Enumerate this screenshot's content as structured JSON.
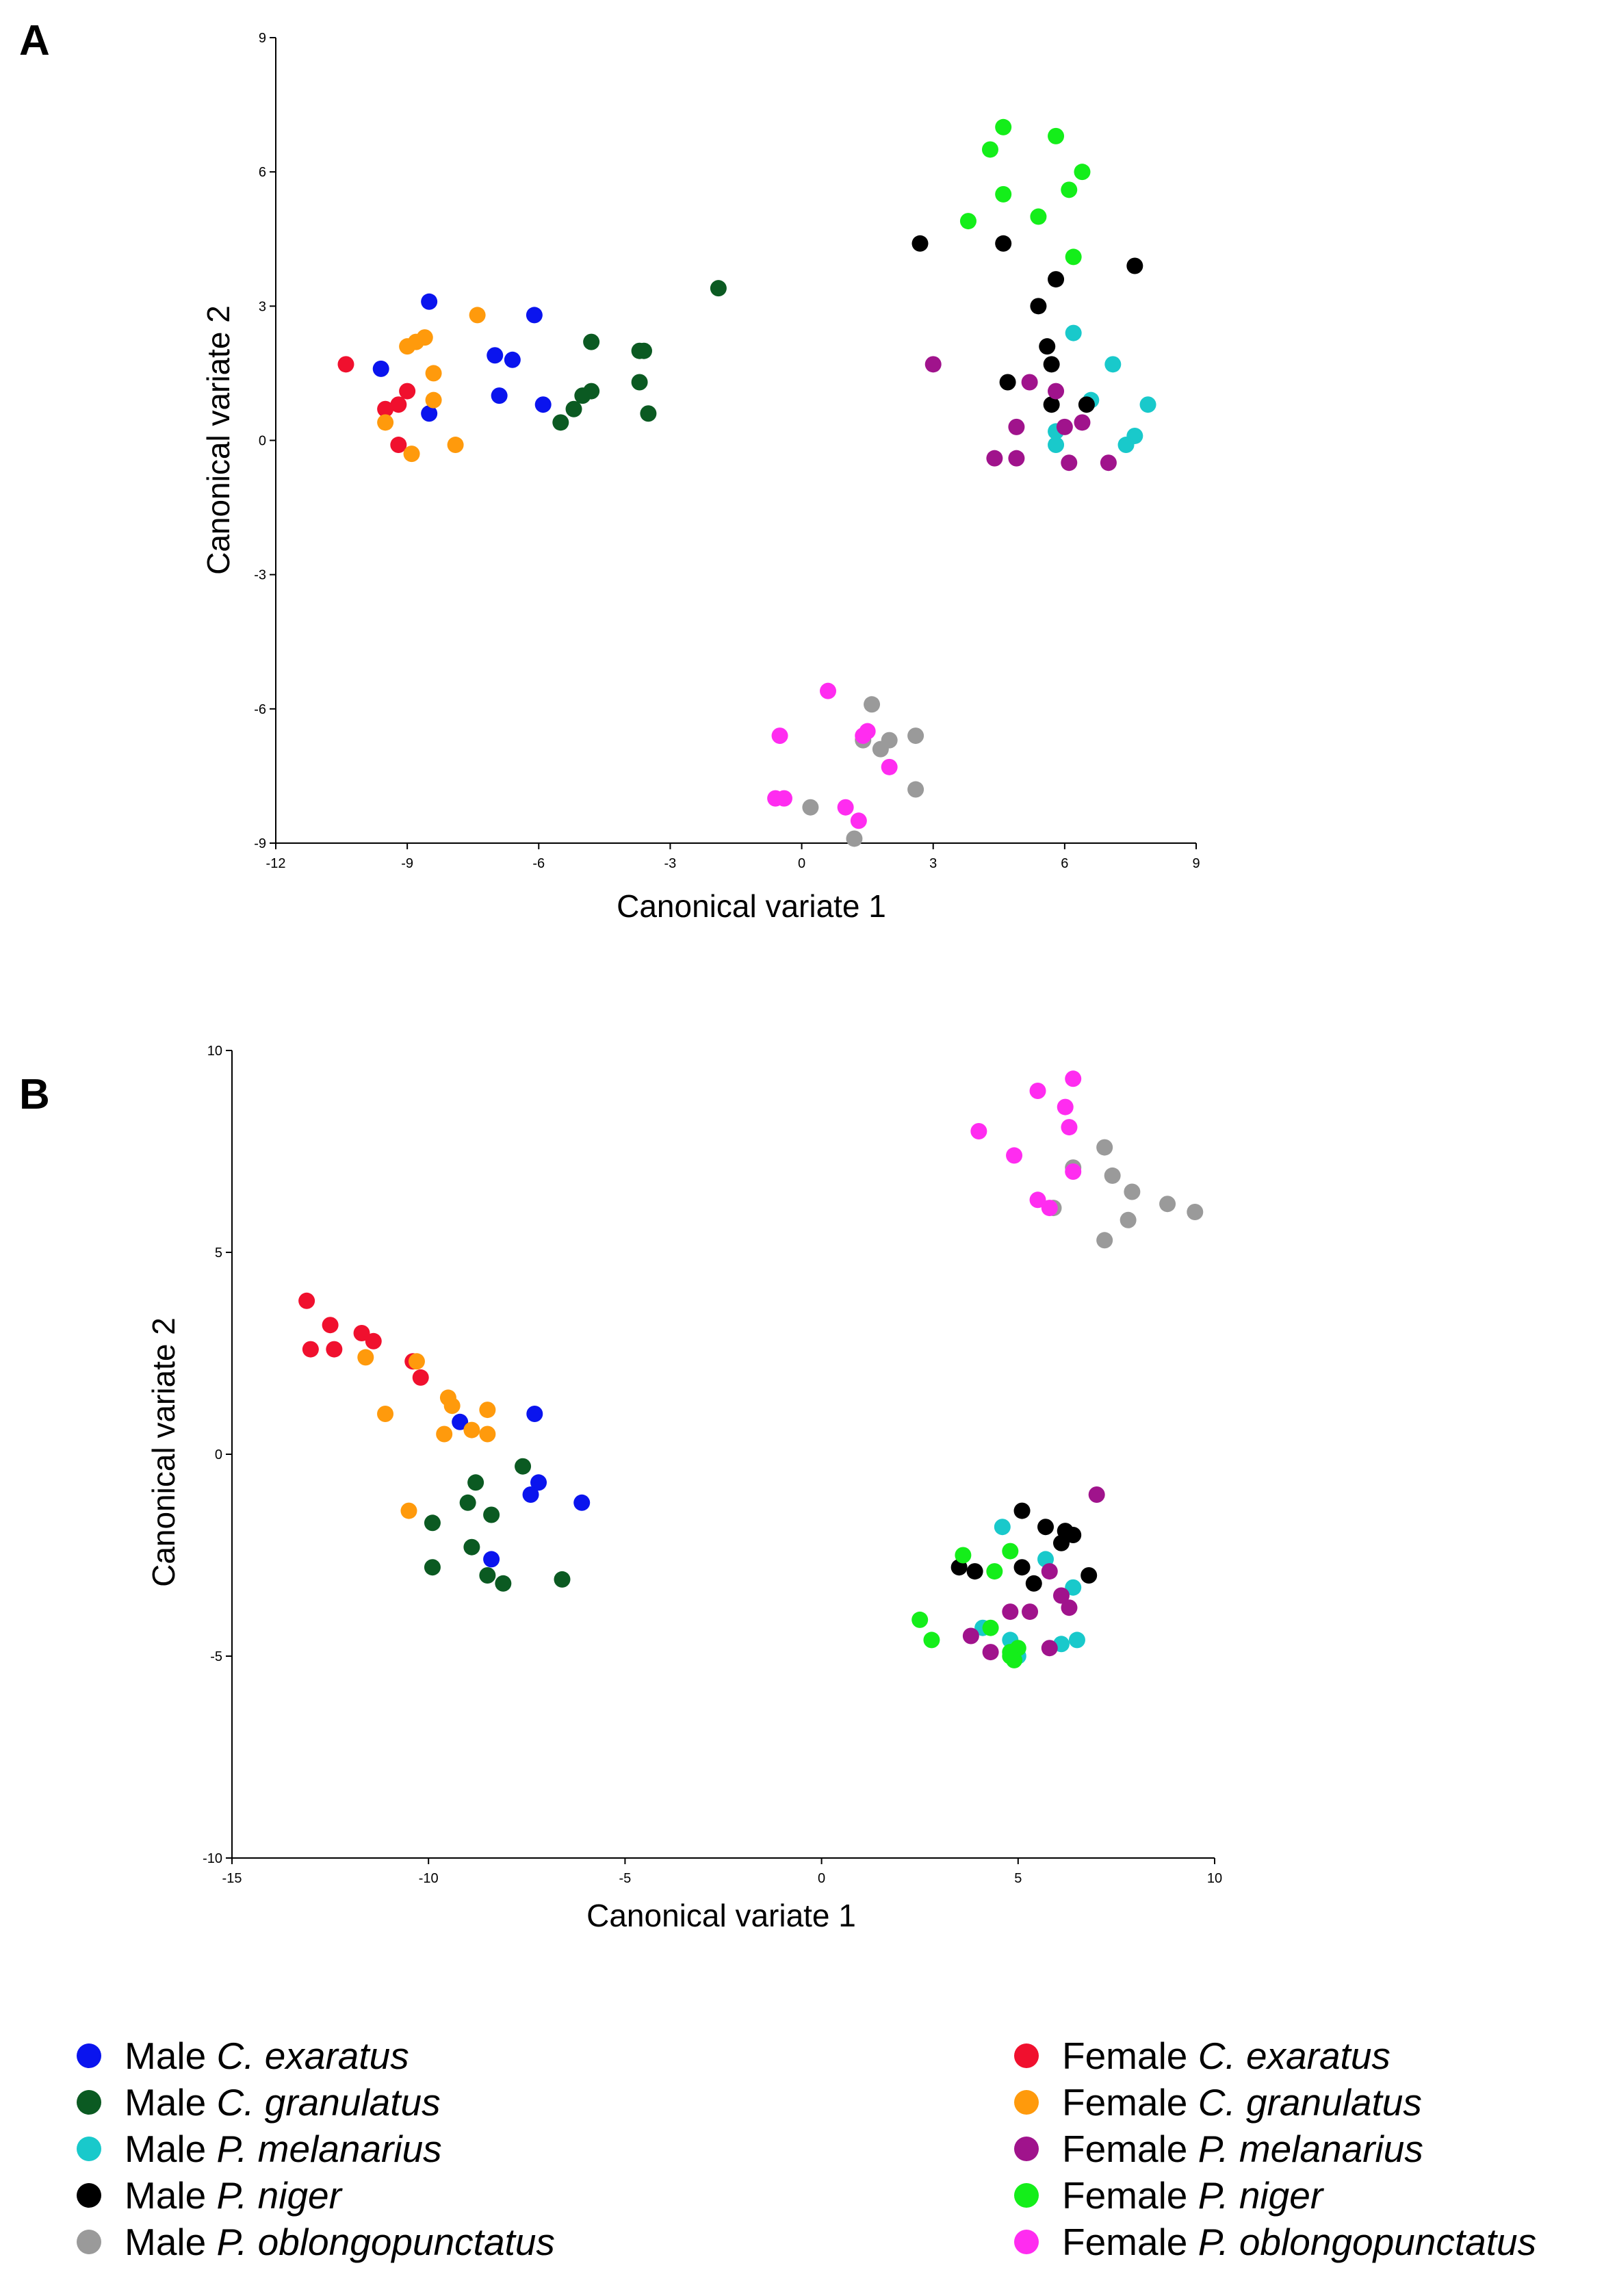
{
  "chart_data": [
    {
      "type": "scatter",
      "panel_label": "A",
      "xlabel": "Canonical variate 1",
      "ylabel": "Canonical variate 2",
      "xlim": [
        -12,
        9
      ],
      "ylim": [
        -9,
        9
      ],
      "xticks": [
        -12,
        -9,
        -6,
        -3,
        0,
        3,
        6,
        9
      ],
      "yticks": [
        -9,
        -6,
        -3,
        0,
        3,
        6,
        9
      ],
      "series": [
        {
          "group": "mce",
          "points": [
            [
              -8.5,
              3.1
            ],
            [
              -9.6,
              1.6
            ],
            [
              -7.0,
              1.9
            ],
            [
              -6.6,
              1.8
            ],
            [
              -6.1,
              2.8
            ],
            [
              -6.9,
              1.0
            ],
            [
              -5.9,
              0.8
            ],
            [
              -8.5,
              0.6
            ]
          ]
        },
        {
          "group": "mcg",
          "points": [
            [
              -4.8,
              2.2
            ],
            [
              -3.7,
              2.0
            ],
            [
              -3.6,
              2.0
            ],
            [
              -4.8,
              1.1
            ],
            [
              -5.0,
              1.0
            ],
            [
              -5.2,
              0.7
            ],
            [
              -5.5,
              0.4
            ],
            [
              -3.7,
              1.3
            ],
            [
              -3.5,
              0.6
            ],
            [
              -1.9,
              3.4
            ]
          ]
        },
        {
          "group": "mpm",
          "points": [
            [
              6.2,
              2.4
            ],
            [
              7.1,
              1.7
            ],
            [
              6.6,
              0.9
            ],
            [
              7.9,
              0.8
            ],
            [
              5.8,
              0.2
            ],
            [
              5.8,
              -0.1
            ],
            [
              7.6,
              0.1
            ],
            [
              7.4,
              -0.1
            ]
          ]
        },
        {
          "group": "mpn",
          "points": [
            [
              2.7,
              4.4
            ],
            [
              4.6,
              4.4
            ],
            [
              5.8,
              3.6
            ],
            [
              7.6,
              3.9
            ],
            [
              5.4,
              3.0
            ],
            [
              5.6,
              2.1
            ],
            [
              5.7,
              1.7
            ],
            [
              4.7,
              1.3
            ],
            [
              5.7,
              0.8
            ],
            [
              6.5,
              0.8
            ]
          ]
        },
        {
          "group": "mpo",
          "points": [
            [
              1.6,
              -5.9
            ],
            [
              2.6,
              -6.6
            ],
            [
              1.4,
              -6.7
            ],
            [
              2.0,
              -6.7
            ],
            [
              1.8,
              -6.9
            ],
            [
              2.6,
              -7.8
            ],
            [
              0.2,
              -8.2
            ],
            [
              1.2,
              -8.9
            ]
          ]
        },
        {
          "group": "fce",
          "points": [
            [
              -10.4,
              1.7
            ],
            [
              -9.0,
              1.1
            ],
            [
              -9.5,
              0.7
            ],
            [
              -9.2,
              0.8
            ],
            [
              -9.2,
              -0.1
            ]
          ]
        },
        {
          "group": "fcg",
          "points": [
            [
              -9.0,
              2.1
            ],
            [
              -8.8,
              2.2
            ],
            [
              -8.6,
              2.3
            ],
            [
              -7.4,
              2.8
            ],
            [
              -8.4,
              1.5
            ],
            [
              -8.4,
              0.9
            ],
            [
              -9.5,
              0.4
            ],
            [
              -8.9,
              -0.3
            ],
            [
              -7.9,
              -0.1
            ]
          ]
        },
        {
          "group": "fpm",
          "points": [
            [
              3.0,
              1.7
            ],
            [
              5.2,
              1.3
            ],
            [
              5.8,
              1.1
            ],
            [
              4.9,
              0.3
            ],
            [
              6.0,
              0.3
            ],
            [
              6.4,
              0.4
            ],
            [
              4.4,
              -0.4
            ],
            [
              4.9,
              -0.4
            ],
            [
              6.1,
              -0.5
            ],
            [
              7.0,
              -0.5
            ]
          ]
        },
        {
          "group": "fpn",
          "points": [
            [
              4.6,
              7.0
            ],
            [
              5.8,
              6.8
            ],
            [
              4.3,
              6.5
            ],
            [
              6.4,
              6.0
            ],
            [
              4.6,
              5.5
            ],
            [
              6.1,
              5.6
            ],
            [
              3.8,
              4.9
            ],
            [
              5.4,
              5.0
            ],
            [
              6.2,
              4.1
            ]
          ]
        },
        {
          "group": "fpo",
          "points": [
            [
              0.6,
              -5.6
            ],
            [
              -0.5,
              -6.6
            ],
            [
              1.5,
              -6.5
            ],
            [
              1.4,
              -6.6
            ],
            [
              2.0,
              -7.3
            ],
            [
              -0.6,
              -8.0
            ],
            [
              -0.4,
              -8.0
            ],
            [
              1.0,
              -8.2
            ],
            [
              1.3,
              -8.5
            ]
          ]
        }
      ]
    },
    {
      "type": "scatter",
      "panel_label": "B",
      "xlabel": "Canonical variate 1",
      "ylabel": "Canonical variate 2",
      "xlim": [
        -15,
        10
      ],
      "ylim": [
        -10,
        10
      ],
      "xticks": [
        -15,
        -10,
        -5,
        0,
        5,
        10
      ],
      "yticks": [
        -10,
        -5,
        0,
        5,
        10
      ],
      "series": [
        {
          "group": "mce",
          "points": [
            [
              -9.2,
              0.8
            ],
            [
              -7.3,
              1.0
            ],
            [
              -7.2,
              -0.7
            ],
            [
              -7.4,
              -1.0
            ],
            [
              -6.1,
              -1.2
            ],
            [
              -8.4,
              -2.6
            ]
          ]
        },
        {
          "group": "mcg",
          "points": [
            [
              -7.6,
              -0.3
            ],
            [
              -8.8,
              -0.7
            ],
            [
              -9.0,
              -1.2
            ],
            [
              -8.4,
              -1.5
            ],
            [
              -9.9,
              -1.7
            ],
            [
              -8.9,
              -2.3
            ],
            [
              -9.9,
              -2.8
            ],
            [
              -8.5,
              -3.0
            ],
            [
              -8.1,
              -3.2
            ],
            [
              -6.6,
              -3.1
            ]
          ]
        },
        {
          "group": "mpm",
          "points": [
            [
              4.6,
              -1.8
            ],
            [
              5.7,
              -2.6
            ],
            [
              6.4,
              -3.3
            ],
            [
              4.1,
              -4.3
            ],
            [
              4.8,
              -4.6
            ],
            [
              5.0,
              -5.0
            ],
            [
              6.1,
              -4.7
            ],
            [
              6.5,
              -4.6
            ]
          ]
        },
        {
          "group": "mpn",
          "points": [
            [
              5.1,
              -1.4
            ],
            [
              5.7,
              -1.8
            ],
            [
              6.2,
              -1.9
            ],
            [
              6.4,
              -2.0
            ],
            [
              6.1,
              -2.2
            ],
            [
              3.5,
              -2.8
            ],
            [
              3.9,
              -2.9
            ],
            [
              5.1,
              -2.8
            ],
            [
              5.4,
              -3.2
            ],
            [
              6.8,
              -3.0
            ]
          ]
        },
        {
          "group": "mpo",
          "points": [
            [
              7.2,
              7.6
            ],
            [
              6.4,
              7.1
            ],
            [
              7.4,
              6.9
            ],
            [
              7.9,
              6.5
            ],
            [
              8.8,
              6.2
            ],
            [
              9.5,
              6.0
            ],
            [
              5.9,
              6.1
            ],
            [
              7.8,
              5.8
            ],
            [
              7.2,
              5.3
            ]
          ]
        },
        {
          "group": "fce",
          "points": [
            [
              -13.1,
              3.8
            ],
            [
              -12.5,
              3.2
            ],
            [
              -11.7,
              3.0
            ],
            [
              -11.4,
              2.8
            ],
            [
              -13.0,
              2.6
            ],
            [
              -12.4,
              2.6
            ],
            [
              -10.4,
              2.3
            ],
            [
              -10.2,
              1.9
            ]
          ]
        },
        {
          "group": "fcg",
          "points": [
            [
              -11.6,
              2.4
            ],
            [
              -10.3,
              2.3
            ],
            [
              -9.5,
              1.4
            ],
            [
              -9.4,
              1.2
            ],
            [
              -8.5,
              1.1
            ],
            [
              -11.1,
              1.0
            ],
            [
              -9.6,
              0.5
            ],
            [
              -8.9,
              0.6
            ],
            [
              -8.5,
              0.5
            ],
            [
              -10.5,
              -1.4
            ]
          ]
        },
        {
          "group": "fpm",
          "points": [
            [
              7.0,
              -1.0
            ],
            [
              5.8,
              -2.9
            ],
            [
              6.1,
              -3.5
            ],
            [
              6.3,
              -3.8
            ],
            [
              4.8,
              -3.9
            ],
            [
              5.3,
              -3.9
            ],
            [
              3.8,
              -4.5
            ],
            [
              4.3,
              -4.9
            ],
            [
              5.8,
              -4.8
            ]
          ]
        },
        {
          "group": "fpn",
          "points": [
            [
              3.6,
              -2.5
            ],
            [
              4.8,
              -2.4
            ],
            [
              4.4,
              -2.9
            ],
            [
              2.5,
              -4.1
            ],
            [
              4.3,
              -4.3
            ],
            [
              2.8,
              -4.6
            ],
            [
              4.8,
              -4.9
            ],
            [
              5.0,
              -4.8
            ],
            [
              4.8,
              -5.0
            ],
            [
              4.9,
              -5.1
            ]
          ]
        },
        {
          "group": "fpo",
          "points": [
            [
              6.4,
              9.3
            ],
            [
              5.5,
              9.0
            ],
            [
              6.2,
              8.6
            ],
            [
              6.3,
              8.1
            ],
            [
              4.0,
              8.0
            ],
            [
              4.9,
              7.4
            ],
            [
              6.4,
              7.0
            ],
            [
              5.5,
              6.3
            ],
            [
              5.8,
              6.1
            ]
          ]
        }
      ]
    }
  ],
  "legend": {
    "items": [
      {
        "key": "mce",
        "prefix": "Male",
        "species": "C. exaratus",
        "color": "#0a14ee"
      },
      {
        "key": "mcg",
        "prefix": "Male",
        "species": "C. granulatus",
        "color": "#0b5a22"
      },
      {
        "key": "mpm",
        "prefix": "Male",
        "species": "P. melanarius",
        "color": "#19c9cb"
      },
      {
        "key": "mpn",
        "prefix": "Male",
        "species": "P. niger",
        "color": "#000000"
      },
      {
        "key": "mpo",
        "prefix": "Male",
        "species": "P. oblongopunctatus",
        "color": "#9a9a9a"
      },
      {
        "key": "fce",
        "prefix": "Female",
        "species": "C. exaratus",
        "color": "#f0102e"
      },
      {
        "key": "fcg",
        "prefix": "Female",
        "species": "C. granulatus",
        "color": "#ff9a0c"
      },
      {
        "key": "fpm",
        "prefix": "Female",
        "species": "P. melanarius",
        "color": "#a0138c"
      },
      {
        "key": "fpn",
        "prefix": "Female",
        "species": "P. niger",
        "color": "#14ee1a"
      },
      {
        "key": "fpo",
        "prefix": "Female",
        "species": "P. oblongopunctatus",
        "color": "#ff2cf0"
      }
    ]
  }
}
